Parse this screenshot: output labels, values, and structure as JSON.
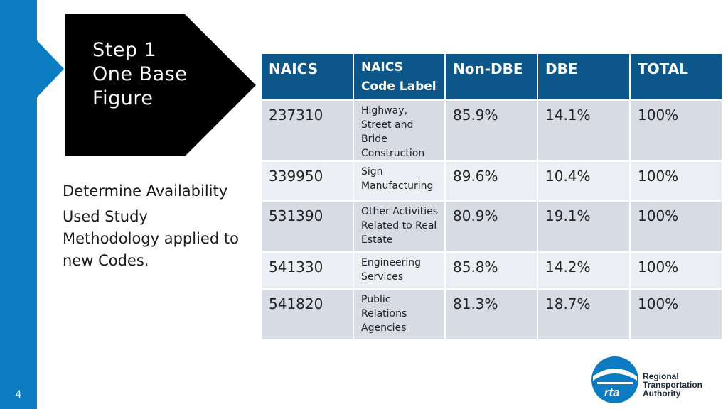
{
  "slide": {
    "number": "4"
  },
  "step": {
    "line1": "Step 1",
    "line2": "One Base",
    "line3": "Figure"
  },
  "body": {
    "paragraph1": "Determine Availability",
    "paragraph2": "Used Study Methodology applied to new Codes."
  },
  "table": {
    "headers": [
      "NAICS",
      "NAICS Code Label",
      "Non-DBE",
      "DBE",
      "TOTAL"
    ],
    "rows": [
      {
        "naics": "237310",
        "label": "Highway, Street and Bride Construction",
        "non_dbe": "85.9%",
        "dbe": "14.1%",
        "total": "100%"
      },
      {
        "naics": "339950",
        "label": "Sign Manufacturing",
        "non_dbe": "89.6%",
        "dbe": "10.4%",
        "total": "100%"
      },
      {
        "naics": "531390",
        "label": "Other Activities Related to Real Estate",
        "non_dbe": "80.9%",
        "dbe": "19.1%",
        "total": "100%"
      },
      {
        "naics": "541330",
        "label": "Engineering Services",
        "non_dbe": "85.8%",
        "dbe": "14.2%",
        "total": "100%"
      },
      {
        "naics": "541820",
        "label": "Public Relations Agencies",
        "non_dbe": "81.3%",
        "dbe": "18.7%",
        "total": "100%"
      }
    ]
  },
  "logo": {
    "line1": "Regional",
    "line2": "Transportation",
    "line3": "Authority",
    "mark_text": "rta"
  },
  "colors": {
    "accent": "#0b7cc1",
    "header": "#0d5689",
    "row_dark": "#d6dbe4",
    "row_light": "#ebeef3",
    "step_bg": "#000000"
  }
}
